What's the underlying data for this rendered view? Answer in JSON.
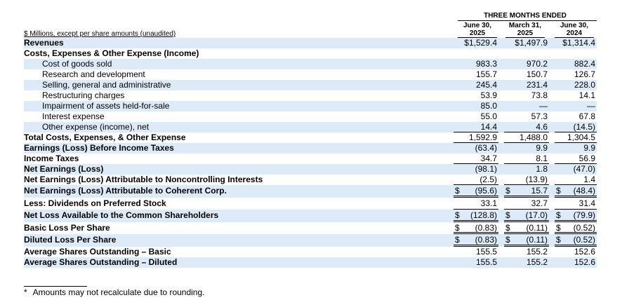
{
  "header": {
    "period_title": "THREE MONTHS ENDED",
    "units_note": "$ Millions, except per share amounts (unaudited)",
    "columns": [
      {
        "line1": "June 30,",
        "line2": "2025"
      },
      {
        "line1": "March 31,",
        "line2": "2025"
      },
      {
        "line1": "June 30,",
        "line2": "2024"
      }
    ]
  },
  "rows": [
    {
      "label": "Revenues",
      "v": [
        "$1,529.4",
        "$1,497.9",
        "$1,314.4"
      ]
    },
    {
      "label": "Costs, Expenses & Other Expense (Income)",
      "v": [
        "",
        "",
        ""
      ]
    },
    {
      "label": "Cost of goods sold",
      "v": [
        "983.3",
        "970.2",
        "882.4"
      ]
    },
    {
      "label": "Research and development",
      "v": [
        "155.7",
        "150.7",
        "126.7"
      ]
    },
    {
      "label": "Selling, general and administrative",
      "v": [
        "245.4",
        "231.4",
        "228.0"
      ]
    },
    {
      "label": "Restructuring charges",
      "v": [
        "53.9",
        "73.8",
        "14.1"
      ]
    },
    {
      "label": "Impairment of assets held-for-sale",
      "v": [
        "85.0",
        "—",
        "—"
      ]
    },
    {
      "label": "Interest expense",
      "v": [
        "55.0",
        "57.3",
        "67.8"
      ]
    },
    {
      "label": "Other expense (income), net",
      "v": [
        "14.4",
        "4.6",
        "(14.5)"
      ]
    },
    {
      "label": "Total Costs, Expenses, & Other Expense",
      "v": [
        "1,592.9",
        "1,488.0",
        "1,304.5"
      ]
    },
    {
      "label": "Earnings (Loss) Before Income Taxes",
      "v": [
        "(63.4)",
        "9.9",
        "9.9"
      ]
    },
    {
      "label": "Income Taxes",
      "v": [
        "34.7",
        "8.1",
        "56.9"
      ]
    },
    {
      "label": "Net Earnings (Loss)",
      "v": [
        "(98.1)",
        "1.8",
        "(47.0)"
      ]
    },
    {
      "label": "Net Earnings (Loss) Attributable to Noncontrolling Interests",
      "v": [
        "(2.5)",
        "(13.9)",
        "1.4"
      ]
    },
    {
      "label": "Net Earnings (Loss) Attributable to Coherent Corp.",
      "d": [
        "$",
        "$",
        "$"
      ],
      "v": [
        "(95.6)",
        "15.7",
        "(48.4)"
      ]
    },
    {
      "label": "Less: Dividends on Preferred Stock",
      "v": [
        "33.1",
        "32.7",
        "31.4"
      ]
    },
    {
      "label": "Net Loss Available to the Common Shareholders",
      "d": [
        "$",
        "$",
        "$"
      ],
      "v": [
        "(128.8)",
        "(17.0)",
        "(79.9)"
      ]
    },
    {
      "label": "Basic Loss Per Share",
      "d": [
        "$",
        "$",
        "$"
      ],
      "v": [
        "(0.83)",
        "(0.11)",
        "(0.52)"
      ]
    },
    {
      "label": "Diluted Loss Per Share",
      "d": [
        "$",
        "$",
        "$"
      ],
      "v": [
        "(0.83)",
        "(0.11)",
        "(0.52)"
      ]
    },
    {
      "label": "Average Shares Outstanding – Basic",
      "v": [
        "155.5",
        "155.2",
        "152.6"
      ]
    },
    {
      "label": "Average Shares Outstanding – Diluted",
      "v": [
        "155.5",
        "155.2",
        "152.6"
      ]
    }
  ],
  "footnote": {
    "marker": "*",
    "text": "Amounts may not recalculate due to rounding."
  }
}
